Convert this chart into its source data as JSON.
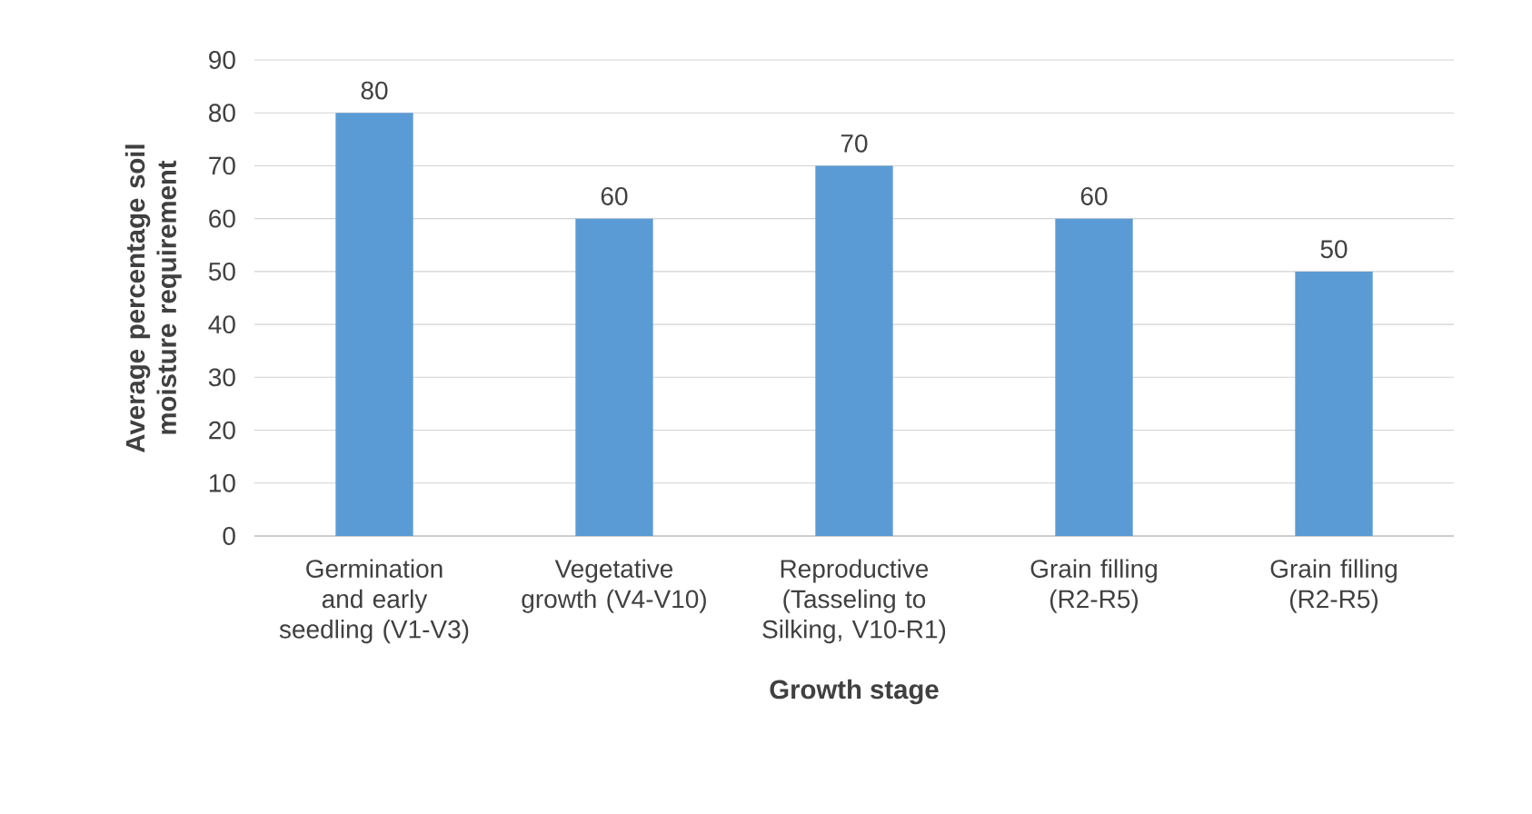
{
  "chart_data": {
    "type": "bar",
    "xlabel": "Growth stage",
    "ylabel": "Average percentage soil moisture requirement",
    "categories": [
      "Germination and early seedling (V1-V3)",
      "Vegetative growth (V4-V10)",
      "Reproductive (Tasseling to Silking, V10-R1)",
      "Grain filling (R2-R5)",
      "Grain filling (R2-R5)"
    ],
    "values": [
      80,
      60,
      70,
      60,
      50
    ],
    "color": "#5b9bd5",
    "ylim": [
      0,
      90
    ],
    "yticks": [
      0,
      10,
      20,
      30,
      40,
      50,
      60,
      70,
      80,
      90
    ],
    "grid": "y",
    "data_labels": true
  }
}
